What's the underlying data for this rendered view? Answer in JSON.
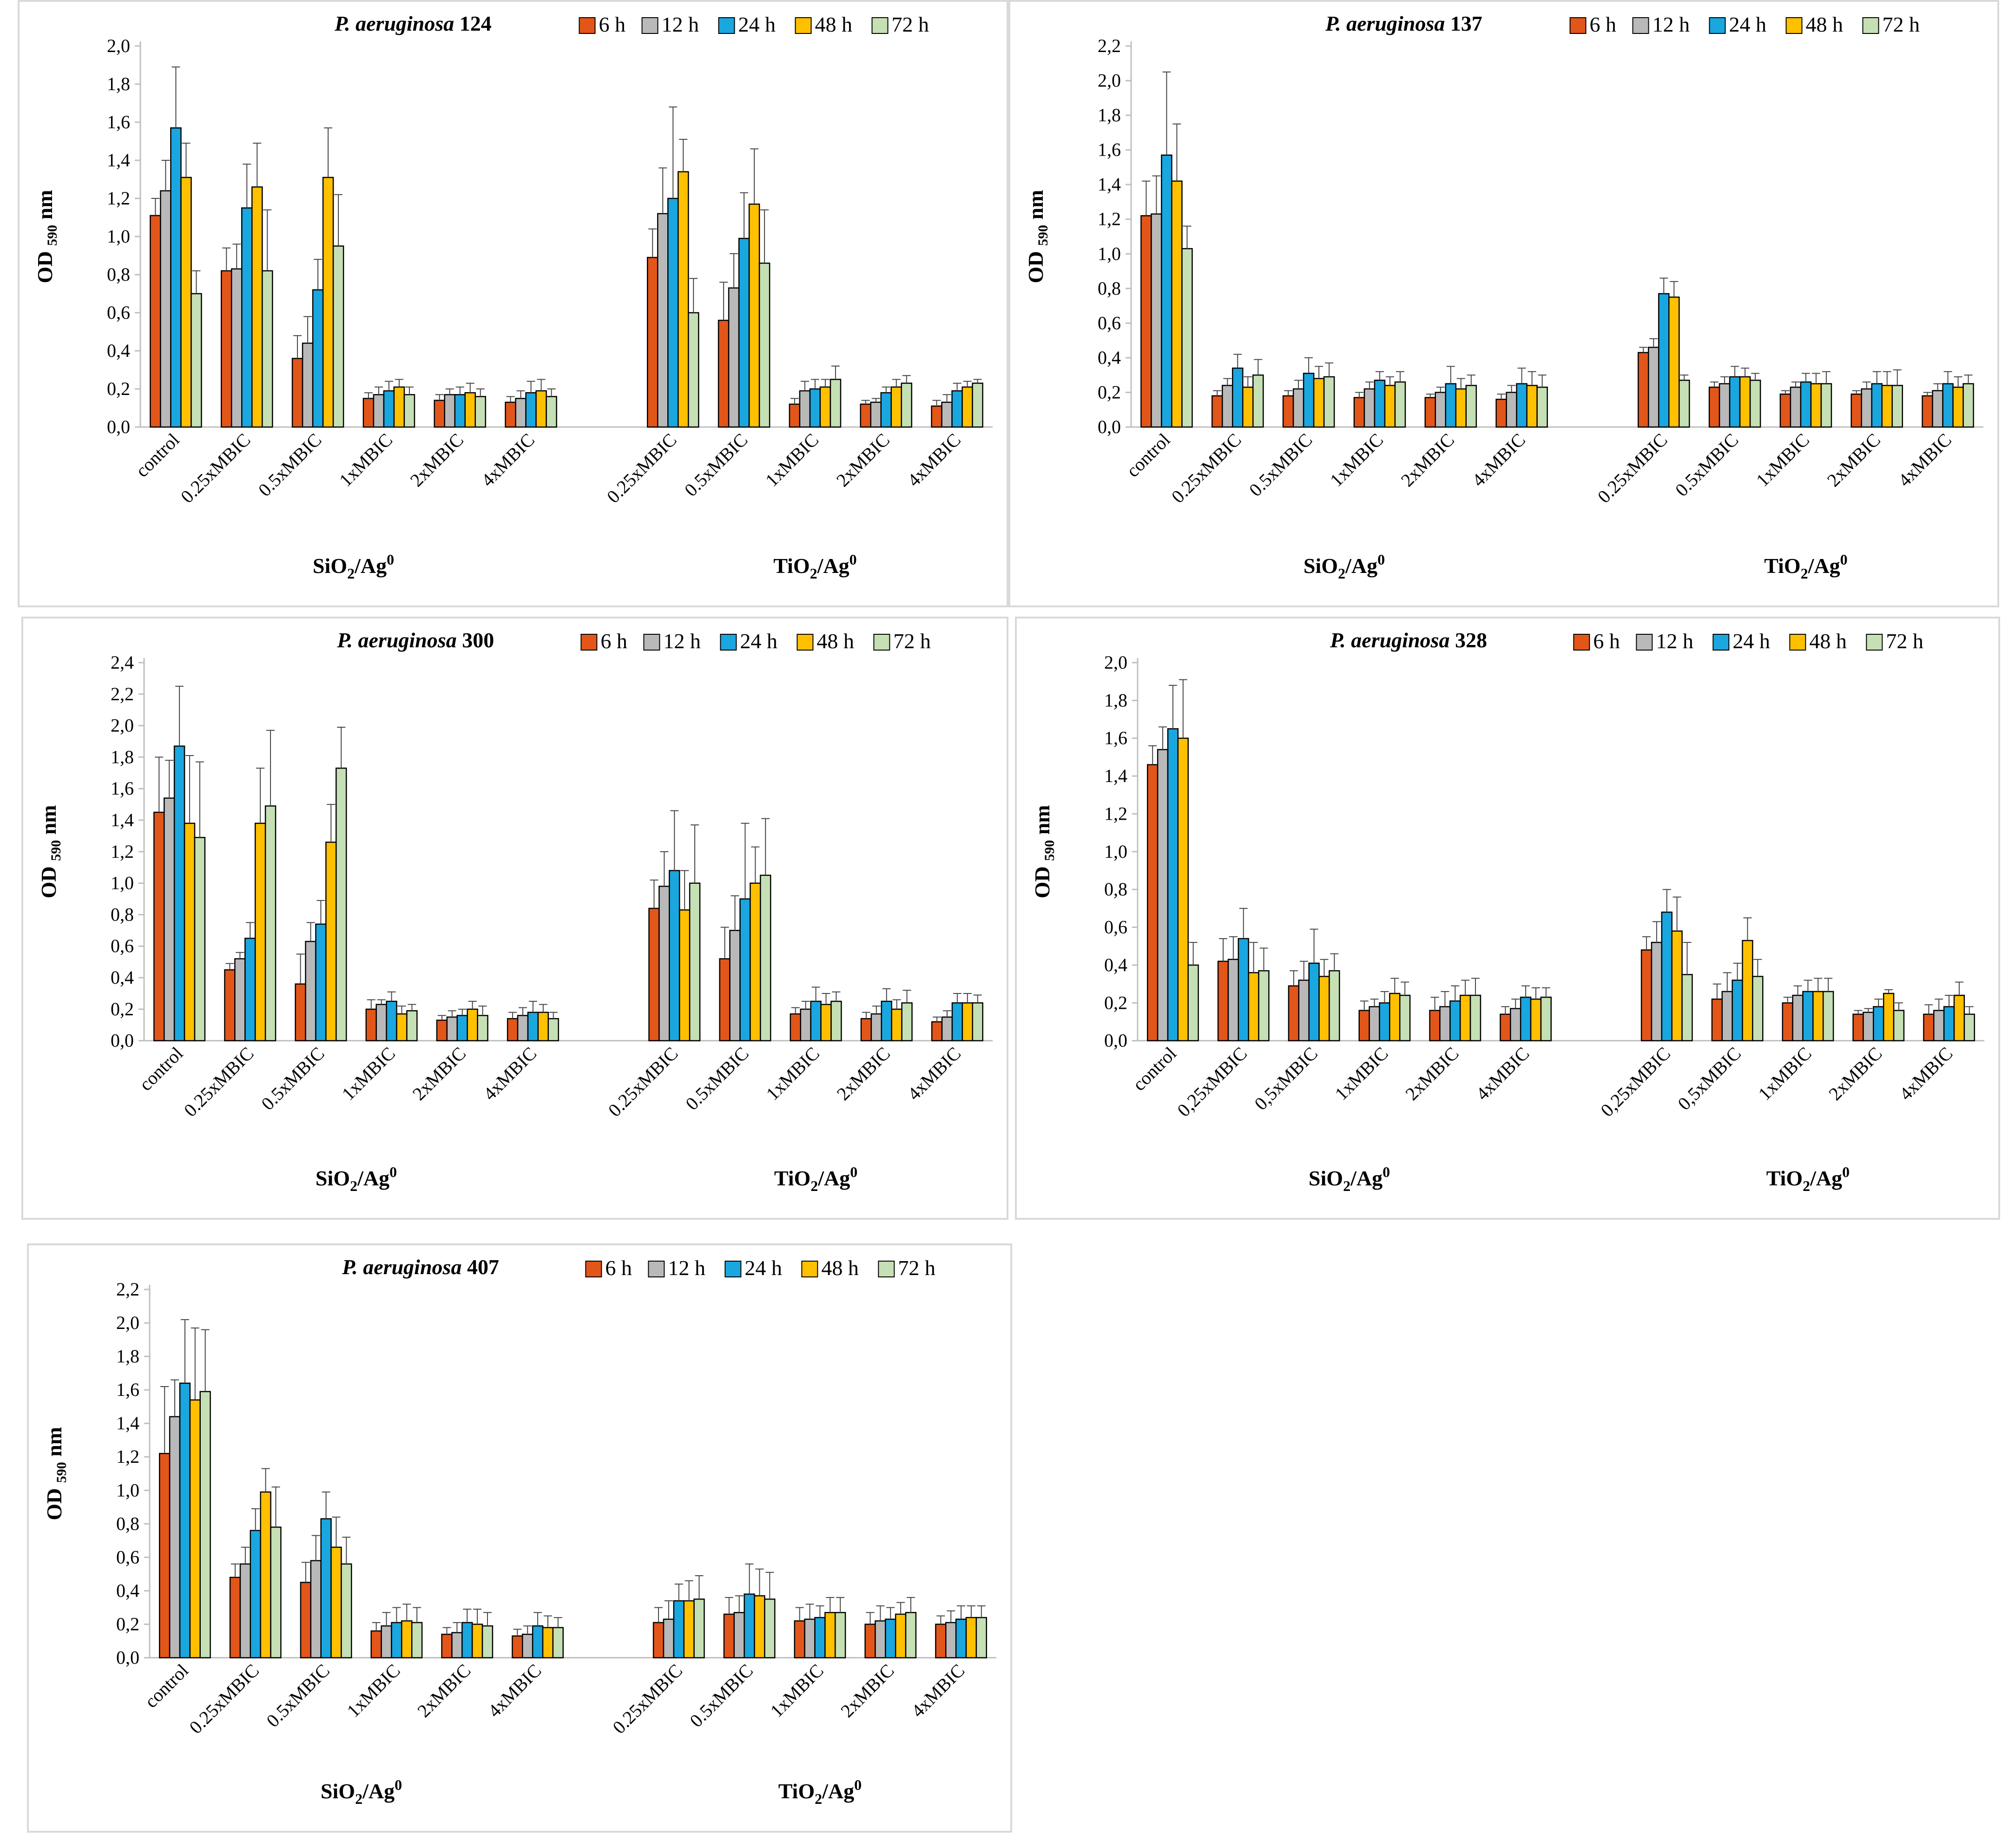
{
  "palette": {
    "6 h": "#e2561a",
    "12 h": "#b9b9b9",
    "24 h": "#1aa6df",
    "48 h": "#ffc000",
    "72 h": "#c5e0b4"
  },
  "chart_data": [
    {
      "type": "bar",
      "title": "P. aeruginosa 124",
      "title_species": "P. aeruginosa",
      "title_strain": "124",
      "ylabel": "OD 590 nm",
      "ylim": [
        0,
        2.0
      ],
      "ystep": 0.2,
      "yticks": [
        "0,0",
        "0,2",
        "0,4",
        "0,6",
        "0,8",
        "1,0",
        "1,2",
        "1,4",
        "1,6",
        "1,8",
        "2,0"
      ],
      "legend": [
        "6 h",
        "12 h",
        "24 h",
        "48 h",
        "72 h"
      ],
      "groups": [
        {
          "name": "SiO2/Ag0",
          "label_main": "SiO",
          "label_sub": "2",
          "label_mid": "/Ag",
          "label_sup": "0",
          "categories": [
            "control",
            "0.25xMBIC",
            "0.5xMBIC",
            "1xMBIC",
            "2xMBIC",
            "4xMBIC"
          ]
        },
        {
          "name": "TiO2/Ag0",
          "label_main": "TiO",
          "label_sub": "2",
          "label_mid": "/Ag",
          "label_sup": "0",
          "categories": [
            "0.25xMBIC",
            "0.5xMBIC",
            "1xMBIC",
            "2xMBIC",
            "4xMBIC"
          ]
        }
      ],
      "series": [
        {
          "name": "6 h",
          "values": [
            1.11,
            0.82,
            0.36,
            0.15,
            0.14,
            0.13,
            0.89,
            0.56,
            0.12,
            0.12,
            0.11
          ],
          "errors": [
            0.09,
            0.12,
            0.12,
            0.03,
            0.03,
            0.03,
            0.15,
            0.2,
            0.03,
            0.02,
            0.03
          ]
        },
        {
          "name": "12 h",
          "values": [
            1.24,
            0.83,
            0.44,
            0.17,
            0.17,
            0.15,
            1.12,
            0.73,
            0.19,
            0.13,
            0.13
          ],
          "errors": [
            0.16,
            0.13,
            0.14,
            0.04,
            0.03,
            0.04,
            0.24,
            0.18,
            0.05,
            0.02,
            0.04
          ]
        },
        {
          "name": "24 h",
          "values": [
            1.57,
            1.15,
            0.72,
            0.19,
            0.17,
            0.18,
            1.2,
            0.99,
            0.2,
            0.18,
            0.19
          ],
          "errors": [
            0.32,
            0.23,
            0.16,
            0.05,
            0.04,
            0.06,
            0.48,
            0.24,
            0.05,
            0.03,
            0.04
          ]
        },
        {
          "name": "48 h",
          "values": [
            1.31,
            1.26,
            1.31,
            0.21,
            0.18,
            0.19,
            1.34,
            1.17,
            0.21,
            0.21,
            0.21
          ],
          "errors": [
            0.18,
            0.23,
            0.26,
            0.04,
            0.05,
            0.06,
            0.17,
            0.29,
            0.04,
            0.04,
            0.03
          ]
        },
        {
          "name": "72 h",
          "values": [
            0.7,
            0.82,
            0.95,
            0.17,
            0.16,
            0.16,
            0.6,
            0.86,
            0.25,
            0.23,
            0.23
          ],
          "errors": [
            0.12,
            0.32,
            0.27,
            0.04,
            0.04,
            0.04,
            0.18,
            0.28,
            0.07,
            0.04,
            0.02
          ]
        }
      ]
    },
    {
      "type": "bar",
      "title": "P. aeruginosa 137",
      "title_species": "P. aeruginosa",
      "title_strain": "137",
      "ylabel": "OD 590 nm",
      "ylim": [
        0,
        2.2
      ],
      "ystep": 0.2,
      "yticks": [
        "0,0",
        "0,2",
        "0,4",
        "0,6",
        "0,8",
        "1,0",
        "1,2",
        "1,4",
        "1,6",
        "1,8",
        "2,0",
        "2,2"
      ],
      "legend": [
        "6 h",
        "12 h",
        "24 h",
        "48 h",
        "72 h"
      ],
      "groups": [
        {
          "name": "SiO2/Ag0",
          "label_main": "SiO",
          "label_sub": "2",
          "label_mid": "/Ag",
          "label_sup": "0",
          "categories": [
            "control",
            "0.25xMBIC",
            "0.5xMBIC",
            "1xMBIC",
            "2xMBIC",
            "4xMBIC"
          ]
        },
        {
          "name": "TiO2/Ag0",
          "label_main": "TiO",
          "label_sub": "2",
          "label_mid": "/Ag",
          "label_sup": "0",
          "categories": [
            "0.25xMBIC",
            "0.5xMBIC",
            "1xMBIC",
            "2xMBIC",
            "4xMBIC"
          ]
        }
      ],
      "series": [
        {
          "name": "6 h",
          "values": [
            1.22,
            0.18,
            0.18,
            0.17,
            0.17,
            0.16,
            0.43,
            0.23,
            0.19,
            0.19,
            0.18
          ],
          "errors": [
            0.2,
            0.03,
            0.03,
            0.03,
            0.02,
            0.03,
            0.03,
            0.03,
            0.02,
            0.02,
            0.02
          ]
        },
        {
          "name": "12 h",
          "values": [
            1.23,
            0.24,
            0.22,
            0.22,
            0.2,
            0.2,
            0.46,
            0.25,
            0.23,
            0.22,
            0.21
          ],
          "errors": [
            0.22,
            0.04,
            0.05,
            0.04,
            0.03,
            0.04,
            0.05,
            0.04,
            0.03,
            0.04,
            0.04
          ]
        },
        {
          "name": "24 h",
          "values": [
            1.57,
            0.34,
            0.31,
            0.27,
            0.25,
            0.25,
            0.77,
            0.29,
            0.26,
            0.25,
            0.25
          ],
          "errors": [
            0.48,
            0.08,
            0.09,
            0.05,
            0.1,
            0.09,
            0.09,
            0.06,
            0.05,
            0.07,
            0.07
          ]
        },
        {
          "name": "48 h",
          "values": [
            1.42,
            0.23,
            0.28,
            0.24,
            0.22,
            0.24,
            0.75,
            0.29,
            0.25,
            0.24,
            0.23
          ],
          "errors": [
            0.33,
            0.06,
            0.07,
            0.05,
            0.06,
            0.08,
            0.09,
            0.05,
            0.06,
            0.08,
            0.06
          ]
        },
        {
          "name": "72 h",
          "values": [
            1.03,
            0.3,
            0.29,
            0.26,
            0.24,
            0.23,
            0.27,
            0.27,
            0.25,
            0.24,
            0.25
          ],
          "errors": [
            0.13,
            0.09,
            0.08,
            0.06,
            0.06,
            0.07,
            0.03,
            0.04,
            0.07,
            0.09,
            0.05
          ]
        }
      ]
    },
    {
      "type": "bar",
      "title": "P. aeruginosa 300",
      "title_species": "P. aeruginosa",
      "title_strain": "300",
      "ylabel": "OD 590 nm",
      "ylim": [
        0,
        2.4
      ],
      "ystep": 0.2,
      "yticks": [
        "0,0",
        "0,2",
        "0,4",
        "0,6",
        "0,8",
        "1,0",
        "1,2",
        "1,4",
        "1,6",
        "1,8",
        "2,0",
        "2,2",
        "2,4"
      ],
      "legend": [
        "6 h",
        "12 h",
        "24 h",
        "48 h",
        "72 h"
      ],
      "groups": [
        {
          "name": "SiO2/Ag0",
          "label_main": "SiO",
          "label_sub": "2",
          "label_mid": "/Ag",
          "label_sup": "0",
          "categories": [
            "control",
            "0.25xMBIC",
            "0.5xMBIC",
            "1xMBIC",
            "2xMBIC",
            "4xMBIC"
          ]
        },
        {
          "name": "TiO2/Ag0",
          "label_main": "TiO",
          "label_sub": "2",
          "label_mid": "/Ag",
          "label_sup": "0",
          "categories": [
            "0.25xMBIC",
            "0.5xMBIC",
            "1xMBIC",
            "2xMBIC",
            "4xMBIC"
          ]
        }
      ],
      "series": [
        {
          "name": "6 h",
          "values": [
            1.45,
            0.45,
            0.36,
            0.2,
            0.13,
            0.14,
            0.84,
            0.52,
            0.17,
            0.14,
            0.12
          ],
          "errors": [
            0.35,
            0.04,
            0.19,
            0.06,
            0.03,
            0.04,
            0.18,
            0.2,
            0.04,
            0.04,
            0.03
          ]
        },
        {
          "name": "12 h",
          "values": [
            1.54,
            0.52,
            0.63,
            0.23,
            0.15,
            0.16,
            0.98,
            0.7,
            0.2,
            0.17,
            0.15
          ],
          "errors": [
            0.24,
            0.04,
            0.12,
            0.03,
            0.04,
            0.05,
            0.22,
            0.22,
            0.05,
            0.05,
            0.04
          ]
        },
        {
          "name": "24 h",
          "values": [
            1.87,
            0.65,
            0.74,
            0.25,
            0.16,
            0.18,
            1.08,
            0.9,
            0.25,
            0.25,
            0.24
          ],
          "errors": [
            0.38,
            0.1,
            0.15,
            0.06,
            0.04,
            0.07,
            0.38,
            0.48,
            0.09,
            0.08,
            0.06
          ]
        },
        {
          "name": "48 h",
          "values": [
            1.38,
            1.38,
            1.26,
            0.17,
            0.2,
            0.18,
            0.83,
            1.0,
            0.23,
            0.2,
            0.24
          ],
          "errors": [
            0.43,
            0.35,
            0.24,
            0.05,
            0.05,
            0.05,
            0.25,
            0.23,
            0.07,
            0.06,
            0.06
          ]
        },
        {
          "name": "72 h",
          "values": [
            1.29,
            1.49,
            1.73,
            0.19,
            0.16,
            0.14,
            1.0,
            1.05,
            0.25,
            0.24,
            0.24
          ],
          "errors": [
            0.48,
            0.48,
            0.26,
            0.04,
            0.06,
            0.04,
            0.37,
            0.36,
            0.06,
            0.08,
            0.05
          ]
        }
      ]
    },
    {
      "type": "bar",
      "title": "P. aeruginosa 328",
      "title_species": "P. aeruginosa",
      "title_strain": "328",
      "ylabel": "OD 590 nm",
      "ylim": [
        0,
        2.0
      ],
      "ystep": 0.2,
      "yticks": [
        "0,0",
        "0,2",
        "0,4",
        "0,6",
        "0,8",
        "1,0",
        "1,2",
        "1,4",
        "1,6",
        "1,8",
        "2,0"
      ],
      "legend": [
        "6 h",
        "12 h",
        "24 h",
        "48 h",
        "72 h"
      ],
      "groups": [
        {
          "name": "SiO2/Ag0",
          "label_main": "SiO",
          "label_sub": "2",
          "label_mid": "/Ag",
          "label_sup": "0",
          "categories": [
            "control",
            "0,25xMBIC",
            "0,5xMBIC",
            "1xMBIC",
            "2xMBIC",
            "4xMBIC"
          ]
        },
        {
          "name": "TiO2/Ag0",
          "label_main": "TiO",
          "label_sub": "2",
          "label_mid": "/Ag",
          "label_sup": "0",
          "categories": [
            "0,25xMBIC",
            "0,5xMBIC",
            "1xMBIC",
            "2xMBIC",
            "4xMBIC"
          ]
        }
      ],
      "series": [
        {
          "name": "6 h",
          "values": [
            1.46,
            0.42,
            0.29,
            0.16,
            0.16,
            0.14,
            0.48,
            0.22,
            0.2,
            0.14,
            0.14
          ],
          "errors": [
            0.1,
            0.12,
            0.08,
            0.05,
            0.07,
            0.04,
            0.07,
            0.08,
            0.03,
            0.02,
            0.05
          ]
        },
        {
          "name": "12 h",
          "values": [
            1.54,
            0.43,
            0.32,
            0.18,
            0.18,
            0.17,
            0.52,
            0.26,
            0.24,
            0.15,
            0.16
          ],
          "errors": [
            0.12,
            0.12,
            0.1,
            0.04,
            0.08,
            0.05,
            0.11,
            0.1,
            0.05,
            0.02,
            0.06
          ]
        },
        {
          "name": "24 h",
          "values": [
            1.65,
            0.54,
            0.41,
            0.2,
            0.21,
            0.23,
            0.68,
            0.32,
            0.26,
            0.18,
            0.18
          ],
          "errors": [
            0.23,
            0.16,
            0.18,
            0.06,
            0.08,
            0.06,
            0.12,
            0.09,
            0.06,
            0.04,
            0.06
          ]
        },
        {
          "name": "48 h",
          "values": [
            1.6,
            0.36,
            0.34,
            0.25,
            0.24,
            0.22,
            0.58,
            0.53,
            0.26,
            0.25,
            0.24
          ],
          "errors": [
            0.31,
            0.16,
            0.09,
            0.08,
            0.08,
            0.06,
            0.18,
            0.12,
            0.07,
            0.02,
            0.07
          ]
        },
        {
          "name": "72 h",
          "values": [
            0.4,
            0.37,
            0.37,
            0.24,
            0.24,
            0.23,
            0.35,
            0.34,
            0.26,
            0.16,
            0.14
          ],
          "errors": [
            0.12,
            0.12,
            0.09,
            0.07,
            0.09,
            0.05,
            0.17,
            0.09,
            0.07,
            0.04,
            0.04
          ]
        }
      ]
    },
    {
      "type": "bar",
      "title": "P. aeruginosa 407",
      "title_species": "P. aeruginosa",
      "title_strain": "407",
      "ylabel": "OD 590 nm",
      "ylim": [
        0,
        2.2
      ],
      "ystep": 0.2,
      "yticks": [
        "0,0",
        "0,2",
        "0,4",
        "0,6",
        "0,8",
        "1,0",
        "1,2",
        "1,4",
        "1,6",
        "1,8",
        "2,0",
        "2,2"
      ],
      "legend": [
        "6 h",
        "12 h",
        "24 h",
        "48 h",
        "72 h"
      ],
      "groups": [
        {
          "name": "SiO2/Ag0",
          "label_main": "SiO",
          "label_sub": "2",
          "label_mid": "/Ag",
          "label_sup": "0",
          "categories": [
            "control",
            "0.25xMBIC",
            "0.5xMBIC",
            "1xMBIC",
            "2xMBIC",
            "4xMBIC"
          ]
        },
        {
          "name": "TiO2/Ag0",
          "label_main": "TiO",
          "label_sub": "2",
          "label_mid": "/Ag",
          "label_sup": "0",
          "categories": [
            "0.25xMBIC",
            "0.5xMBIC",
            "1xMBIC",
            "2xMBIC",
            "4xMBIC"
          ]
        }
      ],
      "series": [
        {
          "name": "6 h",
          "values": [
            1.22,
            0.48,
            0.45,
            0.16,
            0.14,
            0.13,
            0.21,
            0.26,
            0.22,
            0.2,
            0.2
          ],
          "errors": [
            0.4,
            0.08,
            0.12,
            0.05,
            0.04,
            0.04,
            0.09,
            0.1,
            0.08,
            0.07,
            0.05
          ]
        },
        {
          "name": "12 h",
          "values": [
            1.44,
            0.56,
            0.58,
            0.19,
            0.15,
            0.14,
            0.23,
            0.27,
            0.23,
            0.22,
            0.21
          ],
          "errors": [
            0.22,
            0.1,
            0.15,
            0.08,
            0.06,
            0.05,
            0.11,
            0.1,
            0.09,
            0.09,
            0.07
          ]
        },
        {
          "name": "24 h",
          "values": [
            1.64,
            0.76,
            0.83,
            0.21,
            0.21,
            0.19,
            0.34,
            0.38,
            0.24,
            0.23,
            0.23
          ],
          "errors": [
            0.38,
            0.13,
            0.16,
            0.09,
            0.08,
            0.08,
            0.1,
            0.18,
            0.07,
            0.07,
            0.08
          ]
        },
        {
          "name": "48 h",
          "values": [
            1.54,
            0.99,
            0.66,
            0.22,
            0.2,
            0.18,
            0.34,
            0.37,
            0.27,
            0.26,
            0.24
          ],
          "errors": [
            0.43,
            0.14,
            0.18,
            0.1,
            0.09,
            0.07,
            0.12,
            0.16,
            0.09,
            0.07,
            0.07
          ]
        },
        {
          "name": "72 h",
          "values": [
            1.59,
            0.78,
            0.56,
            0.21,
            0.19,
            0.18,
            0.35,
            0.35,
            0.27,
            0.27,
            0.24
          ],
          "errors": [
            0.37,
            0.24,
            0.16,
            0.09,
            0.08,
            0.06,
            0.14,
            0.16,
            0.09,
            0.09,
            0.07
          ]
        }
      ]
    }
  ]
}
